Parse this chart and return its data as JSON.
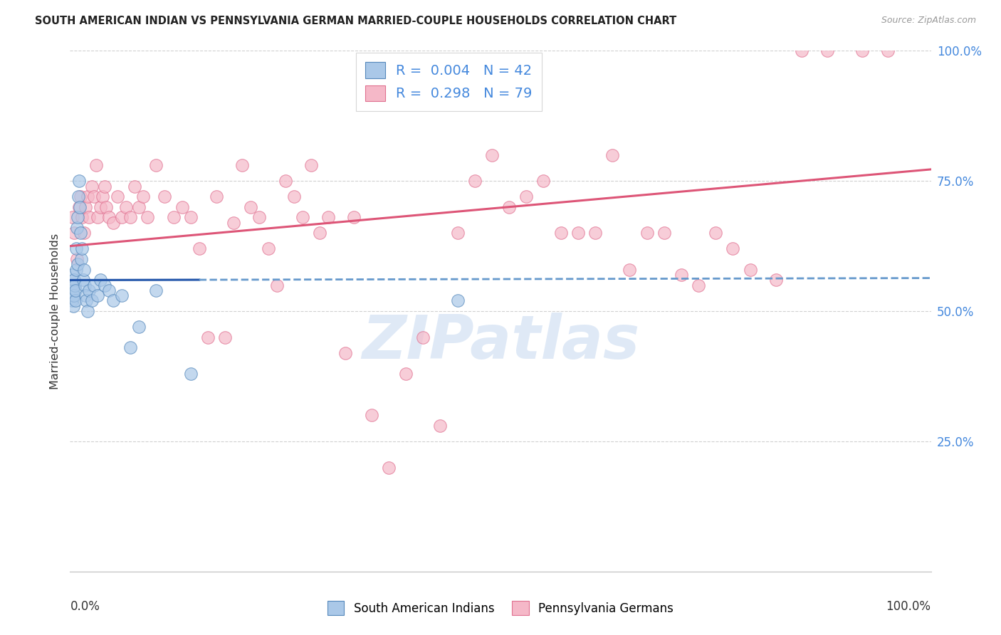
{
  "title": "SOUTH AMERICAN INDIAN VS PENNSYLVANIA GERMAN MARRIED-COUPLE HOUSEHOLDS CORRELATION CHART",
  "source": "Source: ZipAtlas.com",
  "ylabel": "Married-couple Households",
  "blue_R": 0.004,
  "blue_N": 42,
  "pink_R": 0.298,
  "pink_N": 79,
  "blue_label": "South American Indians",
  "pink_label": "Pennsylvania Germans",
  "blue_fill_color": "#aac8e8",
  "pink_fill_color": "#f5b8c8",
  "blue_edge_color": "#5588bb",
  "pink_edge_color": "#e07090",
  "blue_line_color": "#2255aa",
  "pink_line_color": "#dd5577",
  "blue_dashed_color": "#6699cc",
  "watermark_color": "#c5d8f0",
  "background_color": "#ffffff",
  "grid_color": "#d0d0d0",
  "right_tick_color": "#4488dd",
  "title_color": "#222222",
  "source_color": "#999999",
  "axis_color": "#333333",
  "blue_scatter_x": [
    0.15,
    0.2,
    0.25,
    0.3,
    0.35,
    0.4,
    0.45,
    0.5,
    0.55,
    0.6,
    0.65,
    0.7,
    0.75,
    0.8,
    0.85,
    0.9,
    0.95,
    1.0,
    1.1,
    1.2,
    1.3,
    1.4,
    1.5,
    1.6,
    1.7,
    1.8,
    1.9,
    2.0,
    2.2,
    2.5,
    2.8,
    3.2,
    3.5,
    4.0,
    4.5,
    5.0,
    6.0,
    7.0,
    8.0,
    10.0,
    14.0,
    45.0
  ],
  "blue_scatter_y": [
    55.0,
    57.0,
    52.0,
    54.0,
    51.0,
    53.0,
    56.0,
    53.0,
    55.0,
    52.0,
    54.0,
    58.0,
    62.0,
    66.0,
    59.0,
    68.0,
    72.0,
    75.0,
    70.0,
    65.0,
    60.0,
    62.0,
    56.0,
    58.0,
    55.0,
    53.0,
    52.0,
    50.0,
    54.0,
    52.0,
    55.0,
    53.0,
    56.0,
    55.0,
    54.0,
    52.0,
    53.0,
    43.0,
    47.0,
    54.0,
    38.0,
    52.0
  ],
  "pink_scatter_x": [
    0.3,
    0.5,
    0.8,
    1.0,
    1.2,
    1.4,
    1.6,
    1.8,
    2.0,
    2.2,
    2.5,
    2.8,
    3.0,
    3.2,
    3.5,
    3.8,
    4.0,
    4.2,
    4.5,
    5.0,
    5.5,
    6.0,
    6.5,
    7.0,
    7.5,
    8.0,
    8.5,
    9.0,
    10.0,
    11.0,
    12.0,
    13.0,
    14.0,
    15.0,
    16.0,
    17.0,
    18.0,
    19.0,
    20.0,
    21.0,
    22.0,
    23.0,
    24.0,
    25.0,
    26.0,
    27.0,
    28.0,
    29.0,
    30.0,
    32.0,
    33.0,
    35.0,
    37.0,
    39.0,
    41.0,
    43.0,
    45.0,
    47.0,
    49.0,
    51.0,
    53.0,
    55.0,
    57.0,
    59.0,
    61.0,
    63.0,
    65.0,
    67.0,
    69.0,
    71.0,
    73.0,
    75.0,
    77.0,
    79.0,
    82.0,
    85.0,
    88.0,
    92.0,
    95.0
  ],
  "pink_scatter_y": [
    68.0,
    65.0,
    60.0,
    70.0,
    72.0,
    68.0,
    65.0,
    70.0,
    72.0,
    68.0,
    74.0,
    72.0,
    78.0,
    68.0,
    70.0,
    72.0,
    74.0,
    70.0,
    68.0,
    67.0,
    72.0,
    68.0,
    70.0,
    68.0,
    74.0,
    70.0,
    72.0,
    68.0,
    78.0,
    72.0,
    68.0,
    70.0,
    68.0,
    62.0,
    45.0,
    72.0,
    45.0,
    67.0,
    78.0,
    70.0,
    68.0,
    62.0,
    55.0,
    75.0,
    72.0,
    68.0,
    78.0,
    65.0,
    68.0,
    42.0,
    68.0,
    30.0,
    20.0,
    38.0,
    45.0,
    28.0,
    65.0,
    75.0,
    80.0,
    70.0,
    72.0,
    75.0,
    65.0,
    65.0,
    65.0,
    80.0,
    58.0,
    65.0,
    65.0,
    57.0,
    55.0,
    65.0,
    62.0,
    58.0,
    56.0,
    100.0,
    100.0,
    100.0,
    100.0
  ],
  "watermark": "ZIPatlas",
  "blue_line_xmax": 15.0,
  "blue_dashed_xstart": 15.0,
  "xlim": [
    0,
    100
  ],
  "ylim": [
    0,
    100
  ]
}
